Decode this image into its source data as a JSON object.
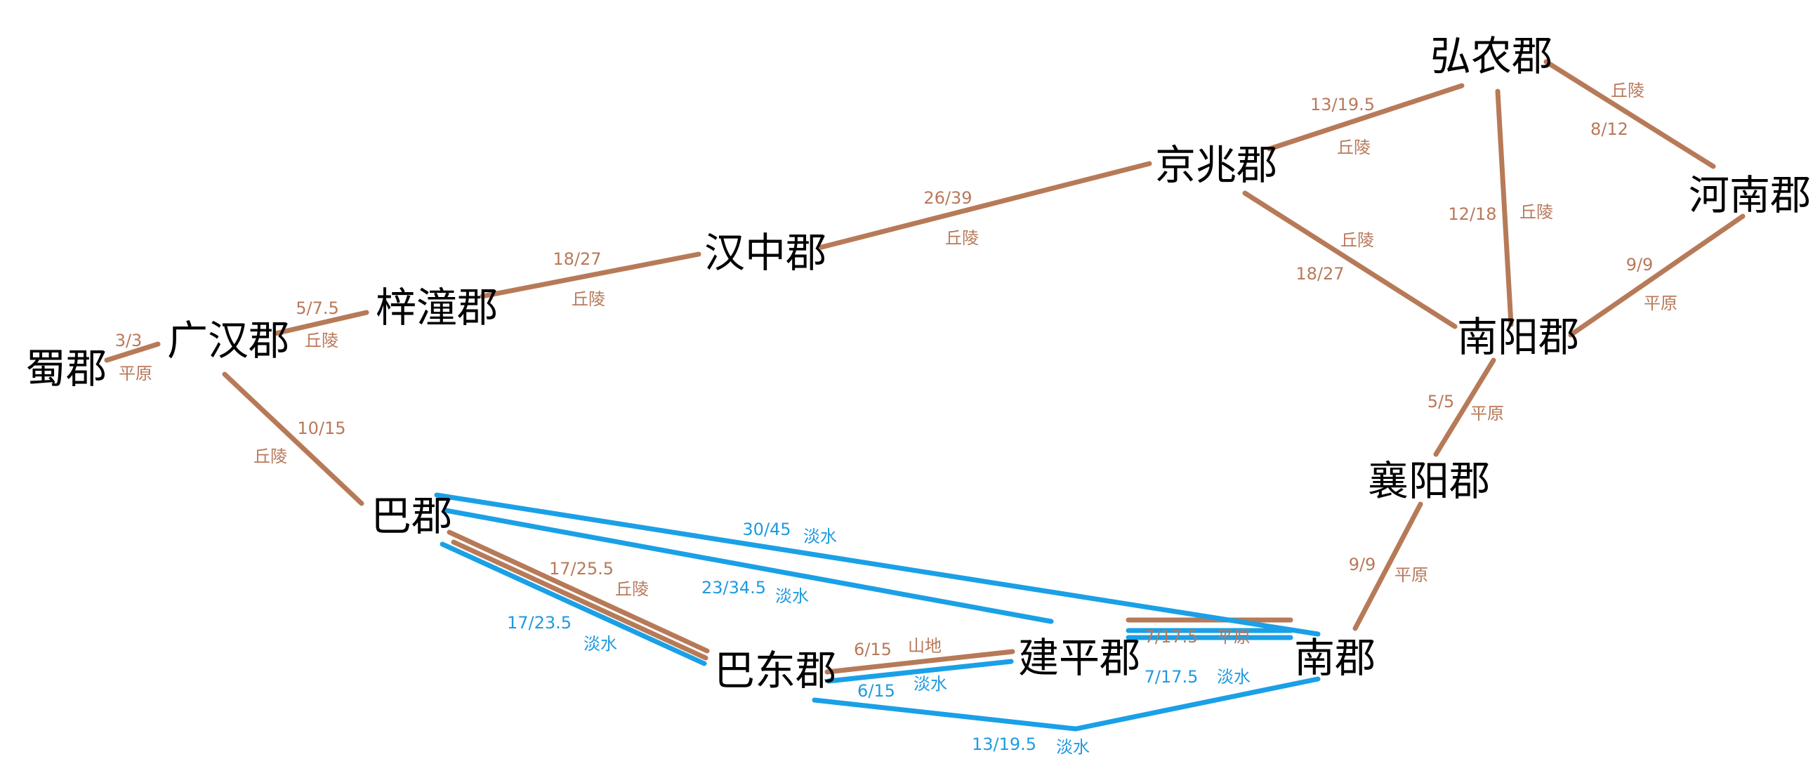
{
  "colors": {
    "land_route": "#b77a58",
    "water_route": "#1aa0e6",
    "land_label": "#b8795a",
    "water_label": "#1f9ae0",
    "node_text": "#000000"
  },
  "nodes": {
    "shu": "蜀郡",
    "guanghan": "广汉郡",
    "zitong": "梓潼郡",
    "hanzhong": "汉中郡",
    "jingzhao": "京兆郡",
    "hongnong": "弘农郡",
    "henan": "河南郡",
    "nanyang": "南阳郡",
    "xiangyang": "襄阳郡",
    "ba": "巴郡",
    "badong": "巴东郡",
    "jianping": "建平郡",
    "nan": "南郡"
  },
  "routes": [
    {
      "id": "shu-guanghan",
      "type": "land",
      "cost": "3/3",
      "terrain": "平原"
    },
    {
      "id": "guanghan-zitong",
      "type": "land",
      "cost": "5/7.5",
      "terrain": "丘陵"
    },
    {
      "id": "zitong-hanzhong",
      "type": "land",
      "cost": "18/27",
      "terrain": "丘陵"
    },
    {
      "id": "hanzhong-jingzhao",
      "type": "land",
      "cost": "26/39",
      "terrain": "丘陵"
    },
    {
      "id": "jingzhao-hongnong",
      "type": "land",
      "cost": "13/19.5",
      "terrain": "丘陵"
    },
    {
      "id": "hongnong-henan",
      "type": "land",
      "cost": "8/12",
      "terrain": "丘陵"
    },
    {
      "id": "hongnong-nanyang",
      "type": "land",
      "cost": "12/18",
      "terrain": "丘陵"
    },
    {
      "id": "jingzhao-nanyang",
      "type": "land",
      "cost": "18/27",
      "terrain": "丘陵"
    },
    {
      "id": "henan-nanyang",
      "type": "land",
      "cost": "9/9",
      "terrain": "平原"
    },
    {
      "id": "nanyang-xiangyang",
      "type": "land",
      "cost": "5/5",
      "terrain": "平原"
    },
    {
      "id": "xiangyang-nan",
      "type": "land",
      "cost": "9/9",
      "terrain": "平原"
    },
    {
      "id": "guanghan-ba",
      "type": "land",
      "cost": "10/15",
      "terrain": "丘陵"
    },
    {
      "id": "ba-badong-land",
      "type": "land",
      "cost": "17/25.5",
      "terrain": "丘陵"
    },
    {
      "id": "ba-badong-water",
      "type": "water",
      "cost": "17/23.5",
      "terrain": "淡水"
    },
    {
      "id": "ba-jianping-water",
      "type": "water",
      "cost": "23/34.5",
      "terrain": "淡水"
    },
    {
      "id": "ba-nan-water",
      "type": "water",
      "cost": "30/45",
      "terrain": "淡水"
    },
    {
      "id": "badong-jianping-land",
      "type": "land",
      "cost": "6/15",
      "terrain": "山地"
    },
    {
      "id": "badong-jianping-water",
      "type": "water",
      "cost": "6/15",
      "terrain": "淡水"
    },
    {
      "id": "jianping-nan-land",
      "type": "land",
      "cost": "7/17.5",
      "terrain": "平原"
    },
    {
      "id": "jianping-nan-water",
      "type": "water",
      "cost": "7/17.5",
      "terrain": "淡水"
    },
    {
      "id": "badong-nan-water",
      "type": "water",
      "cost": "13/19.5",
      "terrain": "淡水"
    }
  ]
}
